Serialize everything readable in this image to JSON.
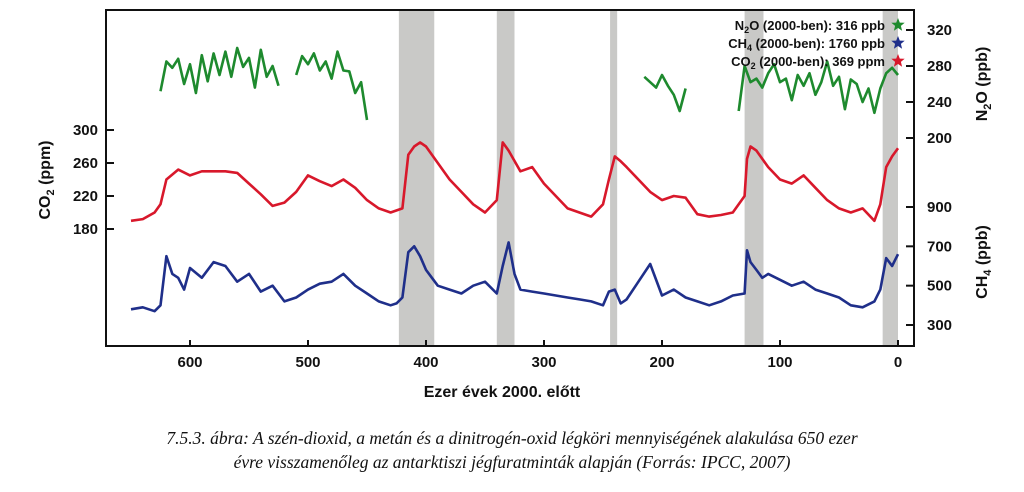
{
  "chart_data": {
    "type": "line",
    "xlabel": "Ezer évek 2000. előtt",
    "xlim": [
      650,
      0
    ],
    "xticks": [
      "600",
      "500",
      "400",
      "300",
      "200",
      "100",
      "0"
    ],
    "interglacials": [
      [
        423,
        393
      ],
      [
        340,
        325
      ],
      [
        244,
        238
      ],
      [
        130,
        114
      ],
      [
        13,
        0
      ]
    ],
    "axes": {
      "co2": {
        "label": "CO2 (ppm)",
        "ticks": [
          "300",
          "260",
          "220",
          "180"
        ],
        "range": [
          180,
          300
        ]
      },
      "n2o": {
        "label": "N2O (ppb)",
        "ticks": [
          "320",
          "280",
          "240",
          "200"
        ],
        "range": [
          200,
          320
        ]
      },
      "ch4": {
        "label": "CH4 (ppb)",
        "ticks": [
          "900",
          "700",
          "500",
          "300"
        ],
        "range": [
          300,
          900
        ]
      }
    },
    "legend": [
      {
        "gas": "N",
        "sub": "2",
        "gas2": "O",
        "text": " (2000-ben): 316 ppb",
        "color": "#1e8a2e"
      },
      {
        "gas": "CH",
        "sub": "4",
        "gas2": "",
        "text": " (2000-ben): 1760 ppb",
        "color": "#1f2f8a"
      },
      {
        "gas": "CO",
        "sub": "2",
        "gas2": "",
        "text": " (2000-ben): 369 ppm",
        "color": "#d8182b"
      }
    ],
    "series": [
      {
        "name": "CO2",
        "axis": "co2",
        "color": "#d8182b",
        "x": [
          650,
          640,
          630,
          625,
          620,
          610,
          600,
          590,
          580,
          570,
          560,
          550,
          540,
          530,
          520,
          510,
          500,
          490,
          480,
          470,
          460,
          450,
          440,
          430,
          420,
          415,
          410,
          405,
          400,
          395,
          390,
          380,
          370,
          360,
          350,
          340,
          335,
          330,
          320,
          310,
          300,
          290,
          280,
          270,
          260,
          250,
          245,
          240,
          235,
          230,
          220,
          210,
          200,
          190,
          180,
          170,
          160,
          150,
          140,
          130,
          128,
          125,
          120,
          115,
          110,
          100,
          90,
          80,
          70,
          60,
          50,
          40,
          30,
          20,
          15,
          10,
          5,
          0
        ],
        "values": [
          190,
          192,
          200,
          210,
          240,
          252,
          245,
          250,
          250,
          250,
          248,
          235,
          222,
          208,
          212,
          225,
          245,
          238,
          232,
          240,
          230,
          215,
          205,
          200,
          205,
          270,
          280,
          285,
          280,
          270,
          260,
          240,
          225,
          210,
          200,
          215,
          285,
          275,
          250,
          255,
          235,
          220,
          205,
          200,
          195,
          210,
          240,
          268,
          262,
          255,
          240,
          225,
          215,
          220,
          218,
          198,
          195,
          197,
          200,
          220,
          265,
          280,
          275,
          265,
          255,
          240,
          235,
          245,
          230,
          215,
          205,
          200,
          205,
          190,
          210,
          255,
          268,
          278
        ]
      },
      {
        "name": "N2O",
        "axis": "n2o",
        "color": "#1e8a2e",
        "segments": [
          {
            "x": [
              625,
              620,
              615,
              610,
              605,
              600,
              595,
              590,
              585,
              580,
              575,
              570,
              565,
              560,
              555,
              550,
              545,
              540,
              535,
              530,
              525
            ],
            "values": [
              252,
              285,
              278,
              288,
              260,
              282,
              250,
              292,
              263,
              294,
              270,
              296,
              268,
              300,
              279,
              289,
              256,
              298,
              268,
              280,
              258
            ]
          },
          {
            "x": [
              510,
              505,
              500,
              495,
              490,
              485,
              480,
              475,
              470,
              465,
              460,
              455,
              450
            ],
            "values": [
              270,
              291,
              282,
              294,
              275,
              285,
              266,
              296,
              275,
              274,
              250,
              262,
              220
            ]
          },
          {
            "x": [
              215,
              210,
              205,
              200,
              195,
              190,
              185,
              180
            ],
            "values": [
              268,
              262,
              256,
              270,
              258,
              248,
              230,
              255
            ]
          },
          {
            "x": [
              135,
              130,
              125,
              120,
              115,
              110,
              105,
              100,
              95,
              90,
              85,
              80,
              75,
              70,
              65,
              60,
              55,
              50,
              45,
              40,
              35,
              30,
              25,
              20,
              15,
              10,
              5,
              0
            ],
            "values": [
              230,
              280,
              262,
              266,
              256,
              272,
              282,
              262,
              266,
              242,
              270,
              258,
              272,
              248,
              262,
              285,
              258,
              268,
              232,
              265,
              260,
              240,
              255,
              228,
              255,
              272,
              278,
              270
            ]
          }
        ]
      },
      {
        "name": "CH4",
        "axis": "ch4",
        "color": "#1f2f8a",
        "x": [
          650,
          640,
          630,
          625,
          620,
          615,
          610,
          605,
          600,
          590,
          580,
          570,
          560,
          550,
          540,
          530,
          520,
          510,
          500,
          490,
          480,
          470,
          460,
          450,
          440,
          430,
          425,
          420,
          415,
          410,
          405,
          400,
          395,
          390,
          380,
          370,
          360,
          350,
          340,
          335,
          330,
          325,
          320,
          310,
          300,
          290,
          280,
          270,
          260,
          250,
          245,
          240,
          235,
          230,
          220,
          210,
          200,
          190,
          180,
          170,
          160,
          150,
          140,
          130,
          128,
          125,
          120,
          115,
          110,
          100,
          90,
          80,
          70,
          60,
          50,
          40,
          30,
          20,
          15,
          10,
          5,
          0
        ],
        "values": [
          380,
          390,
          370,
          400,
          650,
          560,
          540,
          480,
          590,
          540,
          620,
          600,
          520,
          560,
          470,
          500,
          420,
          440,
          480,
          510,
          520,
          560,
          500,
          460,
          420,
          400,
          410,
          440,
          670,
          700,
          650,
          580,
          540,
          500,
          480,
          460,
          500,
          520,
          460,
          600,
          720,
          560,
          480,
          470,
          460,
          450,
          440,
          430,
          420,
          400,
          470,
          480,
          410,
          430,
          520,
          610,
          450,
          480,
          440,
          420,
          400,
          420,
          450,
          460,
          680,
          620,
          580,
          540,
          560,
          530,
          500,
          520,
          480,
          460,
          440,
          400,
          390,
          420,
          480,
          640,
          600,
          660
        ]
      }
    ]
  },
  "caption": {
    "line1": "7.5.3. ábra: A szén-dioxid, a metán és a dinitrogén-oxid légköri mennyiségének alakulása 650 ezer",
    "line2": "évre visszamenőleg az antarktiszi jégfuratminták alapján (Forrás: IPCC, 2007)"
  }
}
